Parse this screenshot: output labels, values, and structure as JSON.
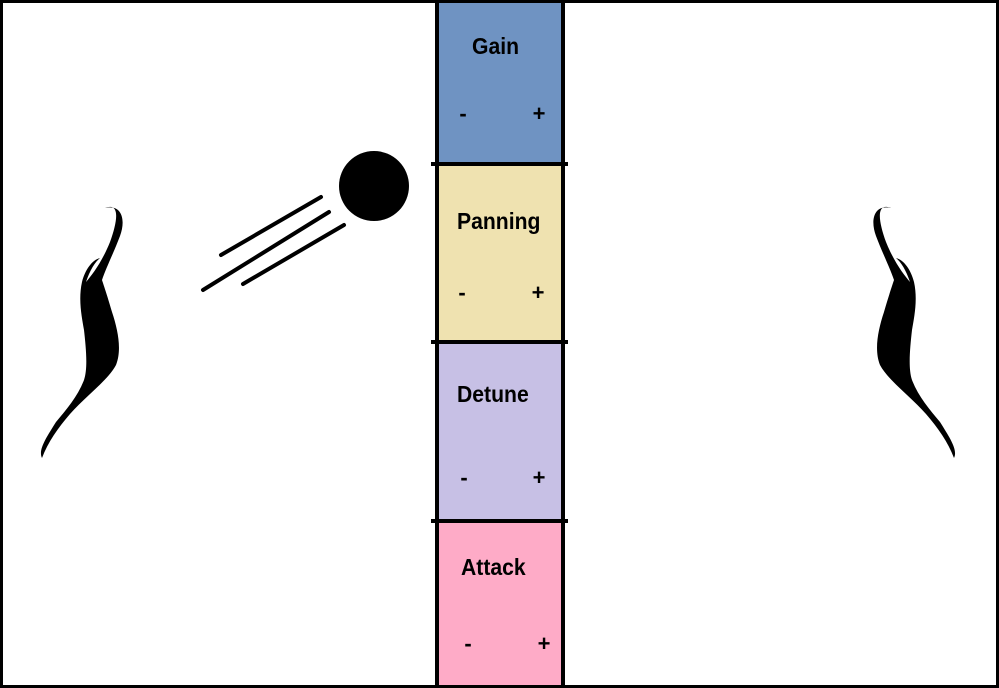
{
  "panels": [
    {
      "id": "gain",
      "title": "Gain",
      "minus": "-",
      "plus": "+",
      "color": "#6f93c2"
    },
    {
      "id": "panning",
      "title": "Panning",
      "minus": "-",
      "plus": "+",
      "color": "#efe2b0"
    },
    {
      "id": "detune",
      "title": "Detune",
      "minus": "-",
      "plus": "+",
      "color": "#c7c0e5"
    },
    {
      "id": "attack",
      "title": "Attack",
      "minus": "-",
      "plus": "+",
      "color": "#feabc7"
    }
  ],
  "icons": {
    "left_hand": "left-hand-icon",
    "right_hand": "right-hand-icon",
    "ball": "ball-icon",
    "motion_lines": "motion-lines-icon"
  }
}
